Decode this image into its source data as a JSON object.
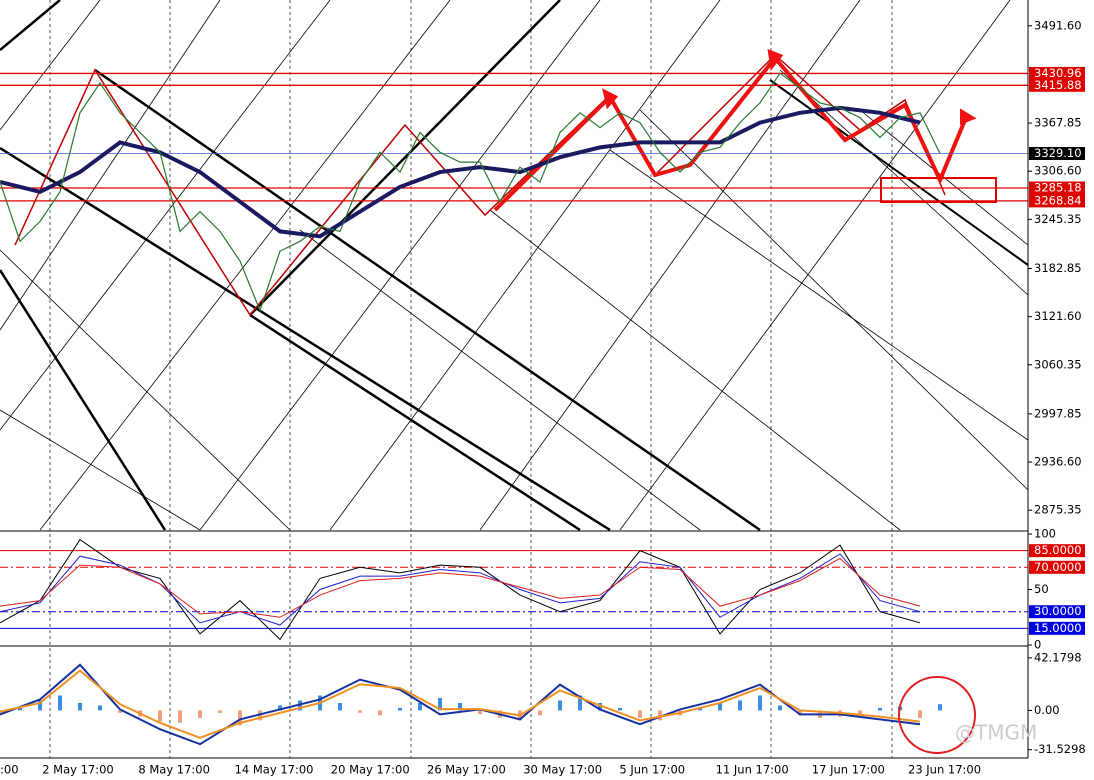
{
  "chart_data": [
    {
      "type": "price",
      "yticks": [
        {
          "value": 3491.6,
          "label": "3491.60"
        },
        3367.85,
        {
          "value": 3306.6,
          "label": "3306.60"
        },
        3245.35,
        3182.85,
        {
          "value": 3121.6,
          "label": "3121.60"
        },
        3060.35,
        2997.85,
        {
          "value": 2936.6,
          "label": "2936.60"
        },
        2875.35
      ],
      "ylim": [
        2852.7,
        3519.3
      ],
      "levels": [
        {
          "value": 3430.96,
          "color": "#e00000"
        },
        {
          "value": 3415.88,
          "color": "#e00000"
        },
        {
          "value": {
            "value": 3329.1,
            "label": "3329.10"
          },
          "color": "#000000"
        },
        {
          "value": 3285.18,
          "color": "#e00000"
        },
        {
          "value": 3268.84,
          "color": "#e00000"
        }
      ],
      "close": [
        3292.9,
        3217.4,
        3242.6,
        3280.3,
        3380.9,
        3418.7,
        3380.9,
        3355.8,
        3330.6,
        3230.0,
        3255.2,
        3230.0,
        3192.3,
        3129.4,
        3204.9,
        3217.4,
        3236.3,
        3230.0,
        3292.9,
        3330.6,
        3305.5,
        3355.8,
        3330.6,
        3318.1,
        3318.1,
        3267.8,
        3311.8,
        3292.9,
        3355.8,
        3380.9,
        3362.1,
        3380.9,
        3368.4,
        3330.6,
        3305.5,
        3330.6,
        3336.9,
        3368.4,
        3393.5,
        3431.3,
        3412.4,
        3393.5,
        3387.2,
        3374.7,
        3349.5,
        3374.7,
        3380.9,
        3329.1
      ],
      "ma": [
        3292.9,
        3280.3,
        3305.5,
        3343.2,
        3330.6,
        3305.5,
        3267.8,
        3230.0,
        3223.7,
        3255.2,
        3286.6,
        3305.5,
        3311.8,
        3305.5,
        3324.4,
        3336.9,
        3343.2,
        3343.2,
        3343.2,
        3368.4,
        3380.9,
        3387.2,
        3380.9,
        3368.4
      ],
      "categories": [
        ":00",
        "2 May 17:00",
        "8 May 17:00",
        "14 May 17:00",
        "20 May 17:00",
        "26 May 17:00",
        "30 May 17:00",
        "5 Jun 17:00",
        "11 Jun 17:00",
        "17 Jun 17:00",
        "23 Jun 17:00"
      ]
    },
    {
      "type": "oscillator",
      "ylim": [
        0,
        100
      ],
      "yticks": [
        100,
        50,
        0
      ],
      "levels": [
        {
          "value": {
            "value": 85,
            "label": "85.0000"
          },
          "color": "#e00000"
        },
        {
          "value": {
            "value": 70,
            "label": "70.0000"
          },
          "color": "#e00000"
        },
        {
          "value": {
            "value": 30,
            "label": "30.0000"
          },
          "color": "#0000e0"
        },
        {
          "value": {
            "value": 15,
            "label": "15.0000"
          },
          "color": "#0000e0"
        }
      ],
      "series": [
        {
          "color": "#000000",
          "values": [
            20,
            40,
            95,
            70,
            60,
            10,
            40,
            5,
            60,
            70,
            65,
            72,
            70,
            45,
            30,
            40,
            85,
            70,
            10,
            50,
            65,
            90,
            30,
            20
          ]
        },
        {
          "color": "#2020d0",
          "values": [
            30,
            38,
            80,
            72,
            55,
            20,
            30,
            18,
            50,
            62,
            62,
            68,
            65,
            50,
            38,
            42,
            75,
            70,
            25,
            45,
            60,
            82,
            40,
            30
          ]
        },
        {
          "color": "#e02020",
          "values": [
            35,
            40,
            72,
            70,
            55,
            28,
            30,
            25,
            45,
            58,
            60,
            65,
            62,
            52,
            42,
            45,
            70,
            68,
            35,
            45,
            58,
            78,
            45,
            35
          ]
        }
      ]
    },
    {
      "type": "macd",
      "ylim": [
        -37.4,
        50.1
      ],
      "yticks": [
        42.1798,
        {
          "value": 0,
          "label": "0.00"
        },
        -31.5298
      ],
      "histogram": [
        -3,
        2,
        8,
        12,
        6,
        4,
        -2,
        -5,
        -9,
        -10,
        -6,
        -2,
        -12,
        -8,
        4,
        8,
        12,
        6,
        -2,
        -4,
        2,
        6,
        10,
        6,
        -3,
        -6,
        -8,
        -4,
        8,
        12,
        6,
        2,
        -6,
        -8,
        -4,
        2,
        6,
        8,
        12,
        4,
        -4,
        -6,
        -5,
        -3,
        2,
        3,
        -6,
        5
      ],
      "series": [
        {
          "color": "#1530a0",
          "values": [
            -3.2,
            8.8,
            36.6,
            0.8,
            -15.1,
            -27.1,
            -7.2,
            0.8,
            8.8,
            24.7,
            16.7,
            -3.2,
            0.8,
            -7.2,
            20.7,
            0.8,
            -11.1,
            0.8,
            8.8,
            20.7,
            -3.2,
            -3.2,
            -7.2,
            -11.1
          ]
        },
        {
          "color": "#f09020",
          "values": [
            -1,
            6,
            32,
            5,
            -10,
            -22,
            -10,
            -2,
            6,
            21,
            18,
            1,
            1,
            -4,
            16,
            4,
            -8,
            -2,
            6,
            18,
            0,
            -2,
            -5,
            -9
          ]
        }
      ]
    }
  ],
  "watermark": "@TMGM"
}
